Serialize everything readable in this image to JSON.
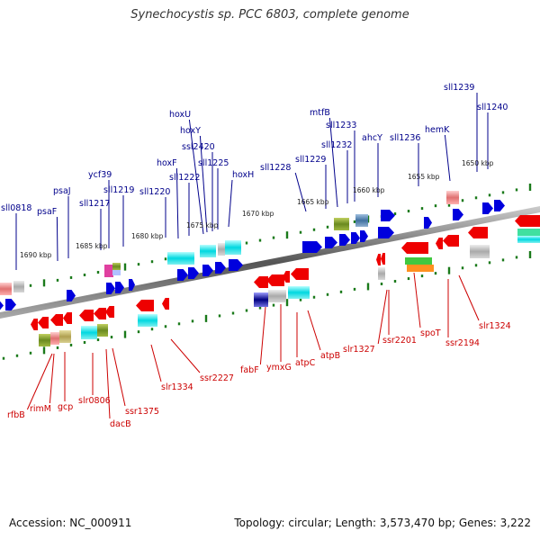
{
  "title": "Synechocystis sp. PCC 6803, complete genome",
  "footer": {
    "accession": "Accession: NC_000911",
    "topology": "Topology: circular; Length: 3,573,470 bp; Genes: 3,222"
  },
  "scale_ticks": [
    "1690 kbp",
    "1685 kbp",
    "1680 kbp",
    "1675 kbp",
    "1670 kbp",
    "1665 kbp",
    "1660 kbp",
    "1655 kbp",
    "1650 kbp"
  ],
  "forward_labels": [
    "sll0818",
    "psaF",
    "psaJ",
    "sll1217",
    "ycf39",
    "sll1219",
    "sll1220",
    "hoxF",
    "sll1222",
    "hoxU",
    "hoxY",
    "ssl2420",
    "sll1225",
    "hoxH",
    "sll1228",
    "sll1229",
    "mtfB",
    "sll1232",
    "sll1233",
    "ahcY",
    "sll1236",
    "hemK",
    "sll1239",
    "sll1240"
  ],
  "reverse_labels": [
    "rfbB",
    "rimM",
    "gcp",
    "slr0806",
    "dacB",
    "ssr1375",
    "slr1334",
    "ssr2227",
    "fabF",
    "ymxG",
    "atpC",
    "atpB",
    "slr1327",
    "ssr2201",
    "spoT",
    "ssr2194",
    "slr1324"
  ],
  "colors": {
    "forward": "#0000dd",
    "reverse": "#ee0000",
    "forward_label": "#00008b",
    "reverse_label": "#cc0000",
    "tick": "#1a7a1a",
    "backbone": "#777777"
  }
}
